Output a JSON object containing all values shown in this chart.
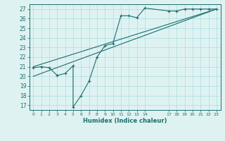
{
  "bg_color": "#dff2f2",
  "grid_color": "#aadddd",
  "line_color": "#1a6e6e",
  "xlabel": "Humidex (Indice chaleur)",
  "ylim": [
    16.5,
    27.5
  ],
  "xlim": [
    -0.5,
    23.5
  ],
  "yticks": [
    17,
    18,
    19,
    20,
    21,
    22,
    23,
    24,
    25,
    26,
    27
  ],
  "xticks": [
    0,
    1,
    2,
    3,
    4,
    5,
    6,
    7,
    8,
    9,
    10,
    11,
    12,
    13,
    14,
    17,
    18,
    19,
    20,
    21,
    22,
    23
  ],
  "line1_x": [
    0,
    1,
    2,
    3,
    4,
    5,
    5,
    6,
    7,
    8,
    9,
    10,
    11,
    12,
    13,
    14,
    17,
    18,
    19,
    20,
    21,
    22,
    23
  ],
  "line1_y": [
    20.9,
    21.0,
    20.9,
    20.1,
    20.3,
    21.1,
    16.8,
    18.0,
    19.5,
    22.0,
    23.2,
    23.4,
    26.3,
    26.3,
    26.1,
    27.1,
    26.8,
    26.8,
    27.0,
    27.0,
    27.0,
    27.0,
    27.0
  ],
  "line2_x": [
    0,
    23
  ],
  "line2_y": [
    21.0,
    27.0
  ],
  "line3_x": [
    0,
    23
  ],
  "line3_y": [
    20.0,
    27.0
  ]
}
